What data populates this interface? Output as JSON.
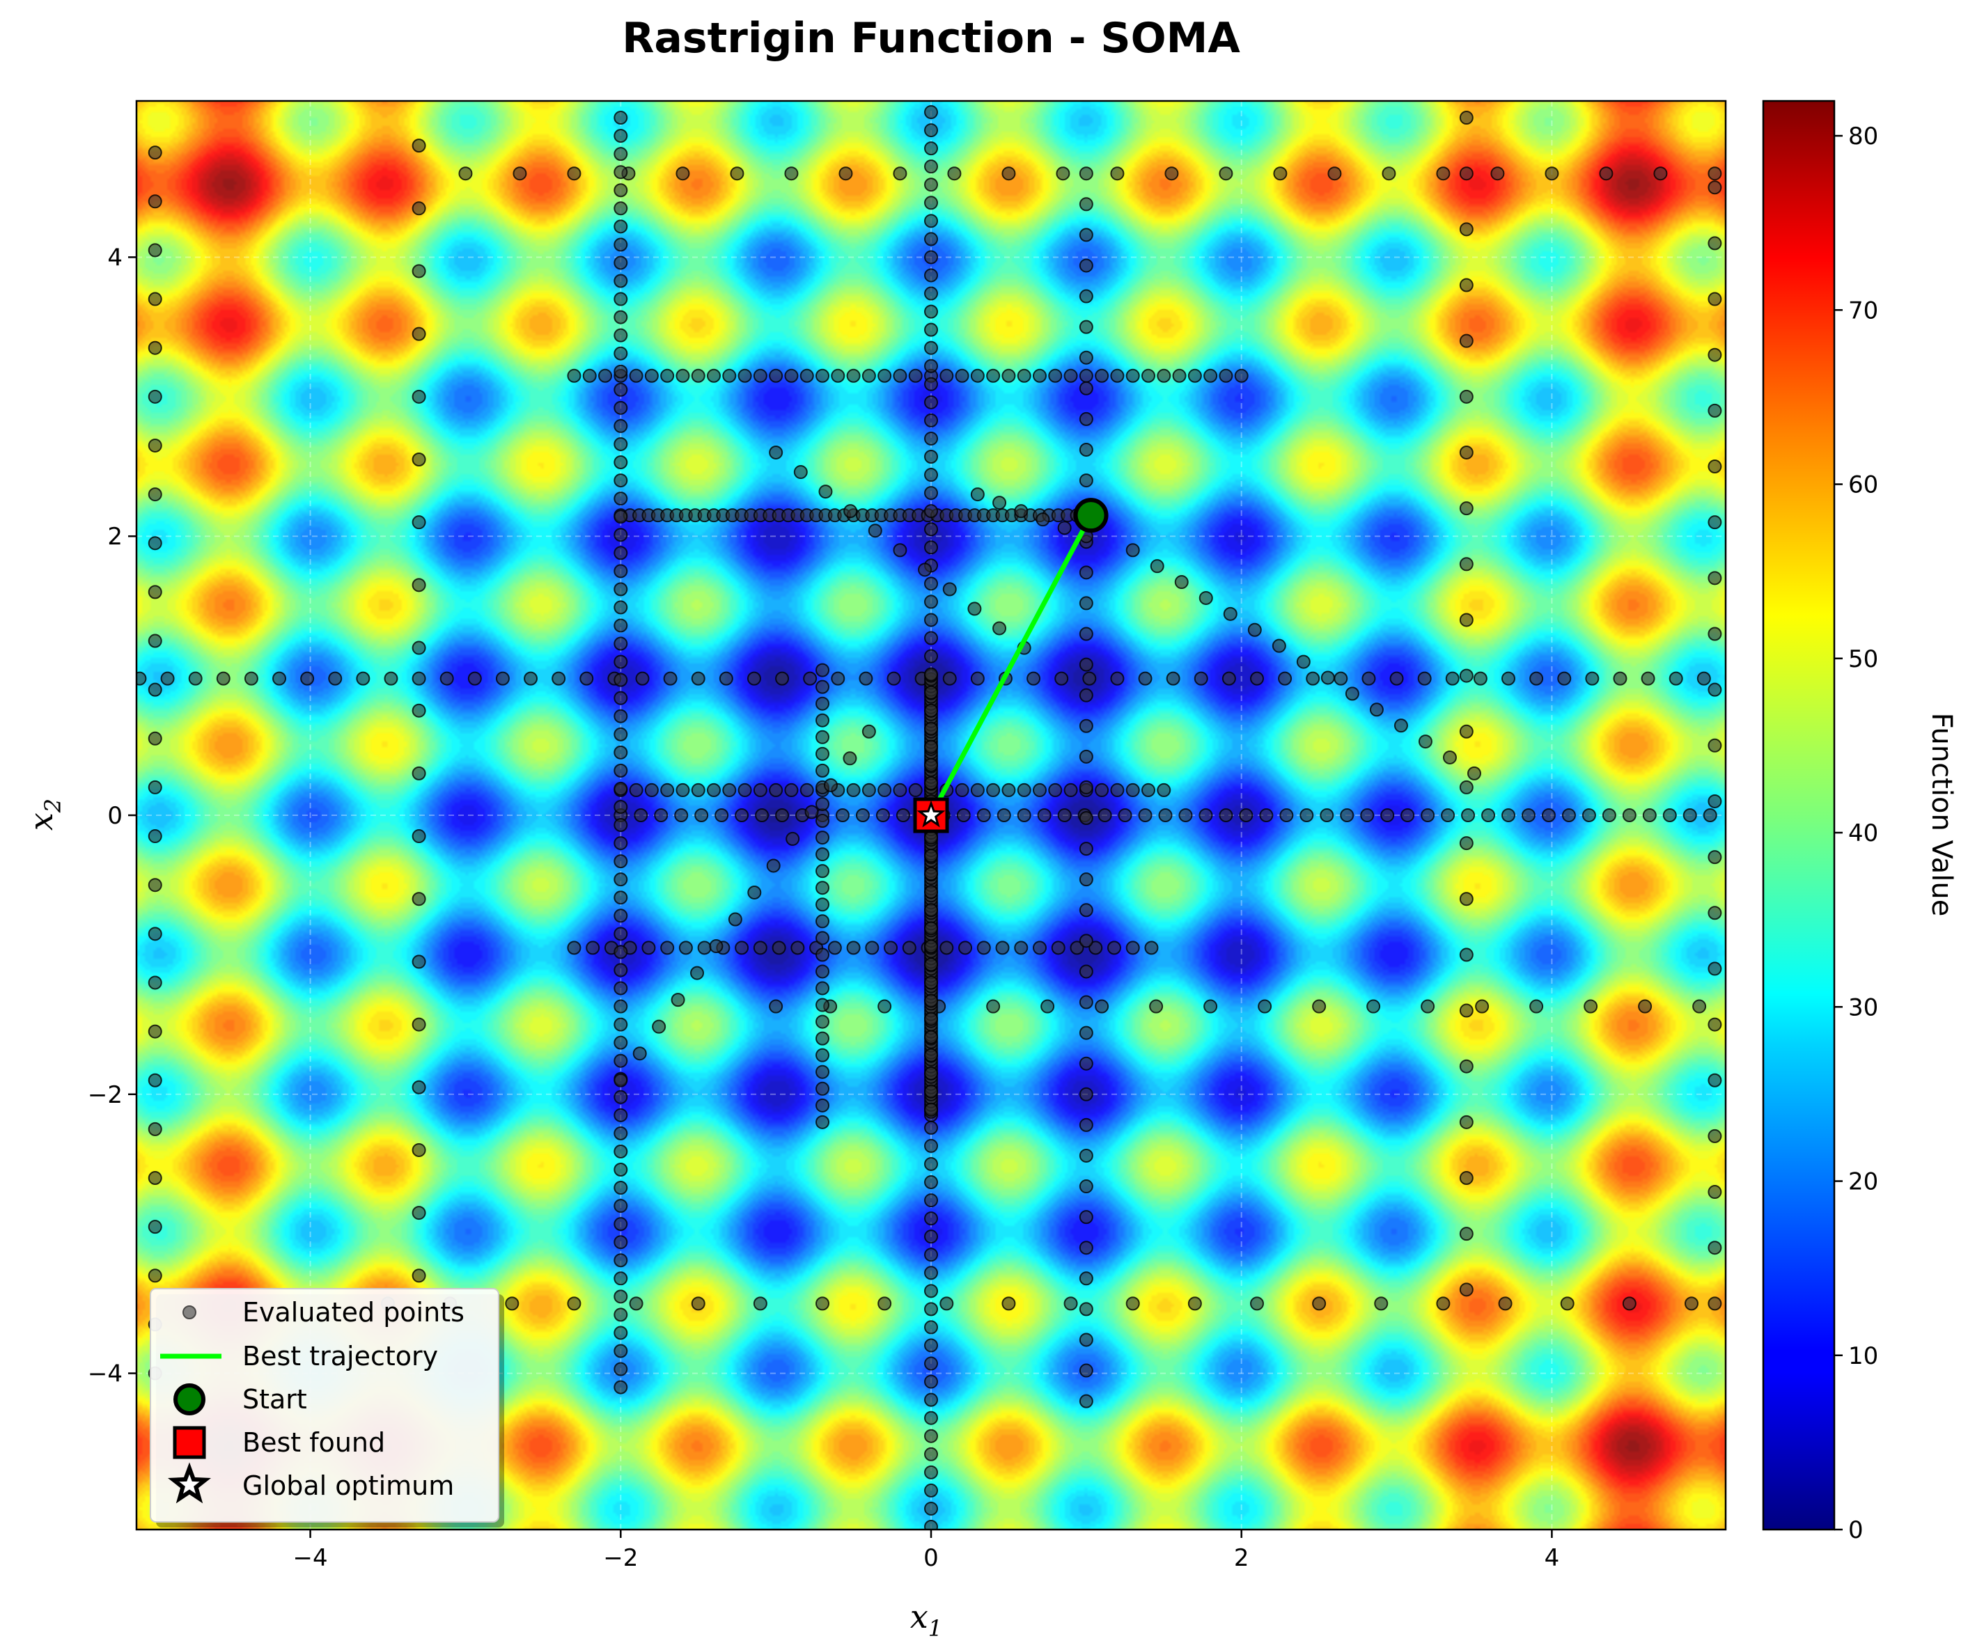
{
  "chart_data": {
    "type": "contour",
    "title": "Rastrigin Function - SOMA",
    "xlabel_base": "x",
    "xlabel_sub": "1",
    "ylabel_base": "x",
    "ylabel_sub": "2",
    "xlim": [
      -5.12,
      5.12
    ],
    "ylim": [
      -5.12,
      5.12
    ],
    "x_ticks": [
      -4,
      -2,
      0,
      2,
      4
    ],
    "y_ticks": [
      -4,
      -2,
      0,
      2,
      4
    ],
    "x_tick_labels": [
      "−4",
      "−2",
      "0",
      "2",
      "4"
    ],
    "y_tick_labels": [
      "−4",
      "−2",
      "0",
      "2",
      "4"
    ],
    "colorbar": {
      "label": "Function Value",
      "range": [
        0,
        82
      ],
      "ticks": [
        0,
        10,
        20,
        30,
        40,
        50,
        60,
        70,
        80
      ],
      "tick_labels": [
        "0",
        "10",
        "20",
        "30",
        "40",
        "50",
        "60",
        "70",
        "80"
      ],
      "colormap": "jet"
    },
    "legend": {
      "placement": "lower-left",
      "entries": [
        "Evaluated points",
        "Best trajectory",
        "Start",
        "Best found",
        "Global optimum"
      ]
    },
    "start_point": [
      1.03,
      2.15
    ],
    "best_found": [
      0.0,
      0.0
    ],
    "global_optimum": [
      0.0,
      0.0
    ],
    "best_trajectory": [
      [
        1.03,
        2.15
      ],
      [
        0.0,
        0.0
      ]
    ],
    "trajectory_color": "#00ff00",
    "grid": true,
    "evaluated_point_groups": [
      {
        "kind": "hline",
        "y": 2.15,
        "x_from": -2.0,
        "x_to": 1.03,
        "step": 0.06
      },
      {
        "kind": "hline",
        "y": 3.15,
        "x_from": -2.3,
        "x_to": 2.0,
        "step": 0.1
      },
      {
        "kind": "hline",
        "y": 0.98,
        "x_from": -5.1,
        "x_to": 5.1,
        "step": 0.18
      },
      {
        "kind": "hline",
        "y": 0.18,
        "x_from": -2.0,
        "x_to": 1.5,
        "step": 0.1
      },
      {
        "kind": "hline",
        "y": 0.0,
        "x_from": -2.0,
        "x_to": 5.1,
        "step": 0.13
      },
      {
        "kind": "hline",
        "y": -0.95,
        "x_from": -2.3,
        "x_to": 1.5,
        "step": 0.12
      },
      {
        "kind": "hline",
        "y": 4.6,
        "x_from": -3.0,
        "x_to": 5.1,
        "step": 0.35
      },
      {
        "kind": "hline",
        "y": -1.37,
        "x_from": -1.0,
        "x_to": 5.1,
        "step": 0.35
      },
      {
        "kind": "hline",
        "y": -3.5,
        "x_from": -3.5,
        "x_to": 5.1,
        "step": 0.4
      },
      {
        "kind": "vline",
        "x": 0.0,
        "y_from": -2.15,
        "y_to": 1.0,
        "step": 0.025
      },
      {
        "kind": "vline",
        "x": 0.0,
        "y_from": -5.1,
        "y_to": 5.1,
        "step": 0.13
      },
      {
        "kind": "vline",
        "x": -2.0,
        "y_from": -4.1,
        "y_to": 5.1,
        "step": 0.13
      },
      {
        "kind": "vline",
        "x": -0.7,
        "y_from": -2.2,
        "y_to": 1.15,
        "step": 0.12
      },
      {
        "kind": "vline",
        "x": 1.0,
        "y_from": -4.2,
        "y_to": 4.8,
        "step": 0.22
      },
      {
        "kind": "vline",
        "x": -5.0,
        "y_from": -4.0,
        "y_to": 4.8,
        "step": 0.35
      },
      {
        "kind": "vline",
        "x": -3.3,
        "y_from": -3.3,
        "y_to": 5.0,
        "step": 0.45
      },
      {
        "kind": "vline",
        "x": 3.45,
        "y_from": -3.4,
        "y_to": 5.1,
        "step": 0.4
      },
      {
        "kind": "vline",
        "x": 5.05,
        "y_from": -3.5,
        "y_to": 4.6,
        "step": 0.4
      },
      {
        "kind": "diag",
        "x0": 1.3,
        "y0": 1.9,
        "x1": 3.5,
        "y1": 0.3,
        "step": 0.2
      },
      {
        "kind": "diag",
        "x0": -2.0,
        "y0": -1.9,
        "x1": -0.4,
        "y1": 0.6,
        "step": 0.22
      },
      {
        "kind": "diag",
        "x0": -1.0,
        "y0": 2.6,
        "x1": 0.6,
        "y1": 1.2,
        "step": 0.22
      },
      {
        "kind": "diag",
        "x0": 0.3,
        "y0": 2.3,
        "x1": 1.0,
        "y1": 2.0,
        "step": 0.15
      }
    ]
  }
}
